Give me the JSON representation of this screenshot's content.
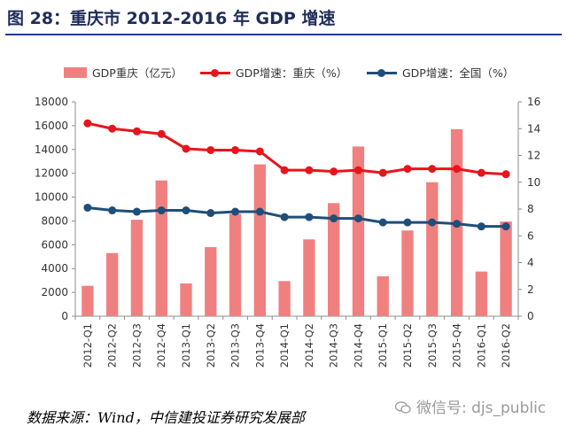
{
  "title": "图 28：重庆市 2012-2016 年 GDP 增速",
  "source": "数据来源：Wind，中信建投证券研究发展部",
  "watermark": "微信号: djs_public",
  "colors": {
    "bar": "#f08080",
    "line1": "#e8141c",
    "line2": "#1f4e79",
    "title": "#1f2d5a",
    "rule": "#1f3c8a"
  },
  "legend": [
    {
      "label": "GDP重庆（亿元）",
      "type": "bar",
      "color": "#f08080"
    },
    {
      "label": "GDP增速：重庆（%）",
      "type": "line",
      "color": "#e8141c"
    },
    {
      "label": "GDP增速：全国（%）",
      "type": "line",
      "color": "#1f4e79"
    }
  ],
  "chart_data": {
    "type": "bar",
    "categories": [
      "2012-Q1",
      "2012-Q2",
      "2012-Q3",
      "2012-Q4",
      "2013-Q1",
      "2013-Q2",
      "2013-Q3",
      "2013-Q4",
      "2014-Q1",
      "2014-Q2",
      "2014-Q3",
      "2014-Q4",
      "2015-Q1",
      "2015-Q2",
      "2015-Q3",
      "2015-Q4",
      "2016-Q1",
      "2016-Q2"
    ],
    "series": [
      {
        "name": "GDP重庆（亿元）",
        "type": "bar",
        "axis": "left",
        "values": [
          2550,
          5300,
          8100,
          11400,
          2750,
          5800,
          8600,
          12750,
          2950,
          6450,
          9500,
          14250,
          3350,
          7200,
          11250,
          15700,
          3750,
          7950
        ]
      },
      {
        "name": "GDP增速：重庆（%）",
        "type": "line",
        "axis": "right",
        "values": [
          14.4,
          14.0,
          13.8,
          13.6,
          12.5,
          12.4,
          12.4,
          12.3,
          10.9,
          10.9,
          10.8,
          10.9,
          10.7,
          11.0,
          11.0,
          11.0,
          10.7,
          10.6
        ]
      },
      {
        "name": "GDP增速：全国（%）",
        "type": "line",
        "axis": "right",
        "values": [
          8.1,
          7.9,
          7.8,
          7.9,
          7.9,
          7.7,
          7.8,
          7.8,
          7.4,
          7.4,
          7.3,
          7.3,
          7.0,
          7.0,
          7.0,
          6.9,
          6.7,
          6.7
        ]
      }
    ],
    "y_left": {
      "min": 0,
      "max": 18000,
      "ticks": [
        0,
        2000,
        4000,
        6000,
        8000,
        10000,
        12000,
        14000,
        16000,
        18000
      ]
    },
    "y_right": {
      "min": 0,
      "max": 16,
      "ticks": [
        0,
        2,
        4,
        6,
        8,
        10,
        12,
        14,
        16
      ]
    },
    "grid": false,
    "legend_position": "top"
  }
}
